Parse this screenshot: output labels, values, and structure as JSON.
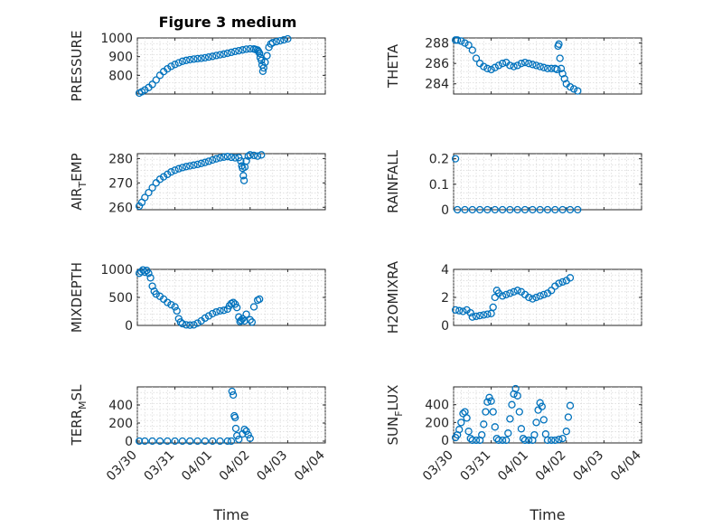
{
  "title": "Figure 3 medium",
  "marker_color": "#0072BD",
  "x_tick_labels": [
    "03/30",
    "03/31",
    "04/01",
    "04/02",
    "04/03",
    "04/04"
  ],
  "x_label": "Time",
  "chart_data": [
    {
      "type": "scatter",
      "name": "pressure",
      "ylabel": [
        "PRESSURE",
        "",
        ""
      ],
      "ylim": [
        700,
        1000
      ],
      "yticks": [
        800,
        900,
        1000
      ],
      "points": [
        [
          0.05,
          705
        ],
        [
          0.12,
          712
        ],
        [
          0.2,
          722
        ],
        [
          0.3,
          735
        ],
        [
          0.4,
          752
        ],
        [
          0.5,
          775
        ],
        [
          0.6,
          800
        ],
        [
          0.7,
          820
        ],
        [
          0.8,
          835
        ],
        [
          0.9,
          848
        ],
        [
          1.0,
          858
        ],
        [
          1.1,
          867
        ],
        [
          1.2,
          875
        ],
        [
          1.3,
          880
        ],
        [
          1.4,
          884
        ],
        [
          1.5,
          887
        ],
        [
          1.6,
          889
        ],
        [
          1.7,
          891
        ],
        [
          1.8,
          894
        ],
        [
          1.9,
          898
        ],
        [
          2.0,
          902
        ],
        [
          2.1,
          906
        ],
        [
          2.2,
          910
        ],
        [
          2.3,
          914
        ],
        [
          2.4,
          918
        ],
        [
          2.5,
          923
        ],
        [
          2.6,
          928
        ],
        [
          2.7,
          932
        ],
        [
          2.8,
          936
        ],
        [
          2.9,
          940
        ],
        [
          3.0,
          942
        ],
        [
          3.1,
          941
        ],
        [
          3.15,
          938
        ],
        [
          3.2,
          935
        ],
        [
          3.22,
          928
        ],
        [
          3.25,
          918
        ],
        [
          3.27,
          895
        ],
        [
          3.3,
          880
        ],
        [
          3.32,
          855
        ],
        [
          3.34,
          822
        ],
        [
          3.36,
          840
        ],
        [
          3.4,
          870
        ],
        [
          3.45,
          905
        ],
        [
          3.5,
          950
        ],
        [
          3.55,
          968
        ],
        [
          3.6,
          975
        ],
        [
          3.7,
          980
        ],
        [
          3.8,
          985
        ],
        [
          3.9,
          990
        ],
        [
          4.0,
          995
        ]
      ]
    },
    {
      "type": "scatter",
      "name": "theta",
      "ylabel": [
        "THETA",
        "",
        ""
      ],
      "ylim": [
        283,
        288.5
      ],
      "yticks": [
        284,
        286,
        288
      ],
      "points": [
        [
          0.05,
          288.3
        ],
        [
          0.1,
          288.3
        ],
        [
          0.2,
          288.2
        ],
        [
          0.3,
          288.0
        ],
        [
          0.4,
          287.8
        ],
        [
          0.5,
          287.3
        ],
        [
          0.6,
          286.5
        ],
        [
          0.7,
          286.0
        ],
        [
          0.8,
          285.7
        ],
        [
          0.9,
          285.5
        ],
        [
          1.0,
          285.4
        ],
        [
          1.1,
          285.6
        ],
        [
          1.2,
          285.8
        ],
        [
          1.3,
          286.0
        ],
        [
          1.4,
          286.1
        ],
        [
          1.5,
          285.8
        ],
        [
          1.6,
          285.7
        ],
        [
          1.7,
          285.8
        ],
        [
          1.8,
          286.0
        ],
        [
          1.9,
          286.1
        ],
        [
          2.0,
          286.0
        ],
        [
          2.1,
          285.9
        ],
        [
          2.2,
          285.8
        ],
        [
          2.3,
          285.7
        ],
        [
          2.4,
          285.6
        ],
        [
          2.5,
          285.5
        ],
        [
          2.6,
          285.5
        ],
        [
          2.7,
          285.5
        ],
        [
          2.75,
          285.4
        ],
        [
          2.78,
          287.7
        ],
        [
          2.8,
          287.9
        ],
        [
          2.83,
          286.5
        ],
        [
          2.86,
          285.5
        ],
        [
          2.9,
          285.0
        ],
        [
          2.95,
          284.5
        ],
        [
          3.0,
          284.0
        ],
        [
          3.1,
          283.7
        ],
        [
          3.2,
          283.5
        ],
        [
          3.3,
          283.3
        ]
      ]
    },
    {
      "type": "scatter",
      "name": "air_temp",
      "ylabel": [
        "AIR",
        "T",
        "EMP"
      ],
      "ylim": [
        259,
        282
      ],
      "yticks": [
        260,
        270,
        280
      ],
      "points": [
        [
          0.05,
          260.5
        ],
        [
          0.12,
          262
        ],
        [
          0.2,
          264
        ],
        [
          0.3,
          266
        ],
        [
          0.4,
          268
        ],
        [
          0.5,
          270
        ],
        [
          0.6,
          271.5
        ],
        [
          0.7,
          272.5
        ],
        [
          0.8,
          273.5
        ],
        [
          0.9,
          274.5
        ],
        [
          1.0,
          275.2
        ],
        [
          1.1,
          275.8
        ],
        [
          1.2,
          276.3
        ],
        [
          1.3,
          276.7
        ],
        [
          1.4,
          277.0
        ],
        [
          1.5,
          277.3
        ],
        [
          1.6,
          277.6
        ],
        [
          1.7,
          278.0
        ],
        [
          1.8,
          278.4
        ],
        [
          1.9,
          278.9
        ],
        [
          2.0,
          279.4
        ],
        [
          2.1,
          279.9
        ],
        [
          2.2,
          280.3
        ],
        [
          2.3,
          280.6
        ],
        [
          2.4,
          280.8
        ],
        [
          2.5,
          280.5
        ],
        [
          2.6,
          280.3
        ],
        [
          2.7,
          280.4
        ],
        [
          2.75,
          279
        ],
        [
          2.78,
          277
        ],
        [
          2.8,
          276
        ],
        [
          2.82,
          273
        ],
        [
          2.84,
          271
        ],
        [
          2.86,
          276.5
        ],
        [
          2.9,
          279
        ],
        [
          2.95,
          281
        ],
        [
          3.0,
          281.5
        ],
        [
          3.1,
          281.3
        ],
        [
          3.2,
          281.0
        ],
        [
          3.3,
          281.5
        ]
      ]
    },
    {
      "type": "scatter",
      "name": "rainfall",
      "ylabel": [
        "RAINFALL",
        "",
        ""
      ],
      "ylim": [
        0,
        0.22
      ],
      "yticks": [
        0,
        0.1,
        0.2
      ],
      "points": [
        [
          0.05,
          0.2
        ],
        [
          0.1,
          0
        ],
        [
          0.3,
          0
        ],
        [
          0.5,
          0
        ],
        [
          0.7,
          0
        ],
        [
          0.9,
          0
        ],
        [
          1.1,
          0
        ],
        [
          1.3,
          0
        ],
        [
          1.5,
          0
        ],
        [
          1.7,
          0
        ],
        [
          1.9,
          0
        ],
        [
          2.1,
          0
        ],
        [
          2.3,
          0
        ],
        [
          2.5,
          0
        ],
        [
          2.7,
          0
        ],
        [
          2.9,
          0
        ],
        [
          3.1,
          0
        ],
        [
          3.3,
          0
        ]
      ]
    },
    {
      "type": "scatter",
      "name": "mixdepth",
      "ylabel": [
        "MIXDEPTH",
        "",
        ""
      ],
      "ylim": [
        0,
        1000
      ],
      "yticks": [
        0,
        500,
        1000
      ],
      "points": [
        [
          0.05,
          930
        ],
        [
          0.1,
          960
        ],
        [
          0.15,
          990
        ],
        [
          0.2,
          950
        ],
        [
          0.25,
          980
        ],
        [
          0.3,
          930
        ],
        [
          0.35,
          850
        ],
        [
          0.4,
          700
        ],
        [
          0.45,
          610
        ],
        [
          0.5,
          560
        ],
        [
          0.6,
          520
        ],
        [
          0.7,
          470
        ],
        [
          0.8,
          410
        ],
        [
          0.9,
          370
        ],
        [
          1.0,
          330
        ],
        [
          1.05,
          260
        ],
        [
          1.1,
          120
        ],
        [
          1.15,
          60
        ],
        [
          1.2,
          30
        ],
        [
          1.3,
          10
        ],
        [
          1.4,
          5
        ],
        [
          1.5,
          10
        ],
        [
          1.6,
          40
        ],
        [
          1.7,
          80
        ],
        [
          1.8,
          130
        ],
        [
          1.9,
          170
        ],
        [
          2.0,
          210
        ],
        [
          2.1,
          240
        ],
        [
          2.2,
          260
        ],
        [
          2.3,
          270
        ],
        [
          2.4,
          290
        ],
        [
          2.45,
          350
        ],
        [
          2.5,
          390
        ],
        [
          2.55,
          410
        ],
        [
          2.6,
          380
        ],
        [
          2.65,
          320
        ],
        [
          2.7,
          150
        ],
        [
          2.73,
          70
        ],
        [
          2.76,
          90
        ],
        [
          2.8,
          120
        ],
        [
          2.85,
          80
        ],
        [
          2.9,
          200
        ],
        [
          3.0,
          100
        ],
        [
          3.05,
          60
        ],
        [
          3.1,
          330
        ],
        [
          3.2,
          450
        ],
        [
          3.25,
          470
        ]
      ]
    },
    {
      "type": "scatter",
      "name": "h2omixra",
      "ylabel": [
        "H2OMIXRA",
        "",
        ""
      ],
      "ylim": [
        0,
        4
      ],
      "yticks": [
        0,
        2,
        4
      ],
      "points": [
        [
          0.05,
          1.1
        ],
        [
          0.15,
          1.05
        ],
        [
          0.25,
          1.0
        ],
        [
          0.35,
          1.1
        ],
        [
          0.45,
          0.9
        ],
        [
          0.5,
          0.6
        ],
        [
          0.6,
          0.65
        ],
        [
          0.7,
          0.7
        ],
        [
          0.8,
          0.75
        ],
        [
          0.9,
          0.8
        ],
        [
          1.0,
          0.85
        ],
        [
          1.05,
          1.3
        ],
        [
          1.1,
          2.0
        ],
        [
          1.15,
          2.5
        ],
        [
          1.2,
          2.3
        ],
        [
          1.3,
          2.1
        ],
        [
          1.4,
          2.2
        ],
        [
          1.5,
          2.3
        ],
        [
          1.6,
          2.4
        ],
        [
          1.7,
          2.5
        ],
        [
          1.8,
          2.4
        ],
        [
          1.9,
          2.2
        ],
        [
          2.0,
          2.0
        ],
        [
          2.1,
          1.9
        ],
        [
          2.2,
          2.0
        ],
        [
          2.3,
          2.1
        ],
        [
          2.4,
          2.2
        ],
        [
          2.5,
          2.3
        ],
        [
          2.6,
          2.5
        ],
        [
          2.7,
          2.8
        ],
        [
          2.8,
          3.0
        ],
        [
          2.9,
          3.1
        ],
        [
          3.0,
          3.2
        ],
        [
          3.1,
          3.4
        ]
      ]
    },
    {
      "type": "scatter",
      "name": "terr_msl",
      "ylabel": [
        "TERR",
        "M",
        "SL"
      ],
      "ylim": [
        -20,
        600
      ],
      "yticks": [
        0,
        200,
        400
      ],
      "points": [
        [
          0.05,
          0
        ],
        [
          0.2,
          0
        ],
        [
          0.4,
          0
        ],
        [
          0.6,
          0
        ],
        [
          0.8,
          0
        ],
        [
          1.0,
          0
        ],
        [
          1.2,
          0
        ],
        [
          1.4,
          0
        ],
        [
          1.6,
          0
        ],
        [
          1.8,
          0
        ],
        [
          2.0,
          0
        ],
        [
          2.2,
          0
        ],
        [
          2.4,
          0
        ],
        [
          2.5,
          0
        ],
        [
          2.52,
          550
        ],
        [
          2.55,
          510
        ],
        [
          2.58,
          280
        ],
        [
          2.6,
          260
        ],
        [
          2.62,
          140
        ],
        [
          2.65,
          60
        ],
        [
          2.7,
          20
        ],
        [
          2.8,
          80
        ],
        [
          2.85,
          130
        ],
        [
          2.9,
          110
        ],
        [
          2.95,
          70
        ],
        [
          3.0,
          30
        ]
      ]
    },
    {
      "type": "scatter",
      "name": "sun_flux",
      "ylabel": [
        "SUN",
        "F",
        "LUX"
      ],
      "ylim": [
        -30,
        600
      ],
      "yticks": [
        0,
        200,
        400
      ],
      "points": [
        [
          0.05,
          30
        ],
        [
          0.1,
          60
        ],
        [
          0.15,
          120
        ],
        [
          0.2,
          200
        ],
        [
          0.25,
          300
        ],
        [
          0.3,
          320
        ],
        [
          0.35,
          250
        ],
        [
          0.4,
          100
        ],
        [
          0.45,
          20
        ],
        [
          0.5,
          0
        ],
        [
          0.6,
          0
        ],
        [
          0.7,
          0
        ],
        [
          0.75,
          60
        ],
        [
          0.8,
          180
        ],
        [
          0.85,
          320
        ],
        [
          0.9,
          430
        ],
        [
          0.95,
          480
        ],
        [
          1.0,
          440
        ],
        [
          1.05,
          320
        ],
        [
          1.1,
          150
        ],
        [
          1.15,
          20
        ],
        [
          1.2,
          0
        ],
        [
          1.3,
          0
        ],
        [
          1.4,
          0
        ],
        [
          1.45,
          80
        ],
        [
          1.5,
          240
        ],
        [
          1.55,
          400
        ],
        [
          1.6,
          520
        ],
        [
          1.65,
          580
        ],
        [
          1.7,
          500
        ],
        [
          1.75,
          320
        ],
        [
          1.8,
          130
        ],
        [
          1.85,
          20
        ],
        [
          1.9,
          0
        ],
        [
          2.0,
          0
        ],
        [
          2.1,
          0
        ],
        [
          2.15,
          60
        ],
        [
          2.2,
          200
        ],
        [
          2.25,
          340
        ],
        [
          2.3,
          420
        ],
        [
          2.35,
          380
        ],
        [
          2.4,
          230
        ],
        [
          2.45,
          70
        ],
        [
          2.5,
          0
        ],
        [
          2.6,
          0
        ],
        [
          2.7,
          0
        ],
        [
          2.8,
          10
        ],
        [
          2.9,
          20
        ],
        [
          3.0,
          100
        ],
        [
          3.05,
          260
        ],
        [
          3.1,
          390
        ]
      ]
    }
  ]
}
